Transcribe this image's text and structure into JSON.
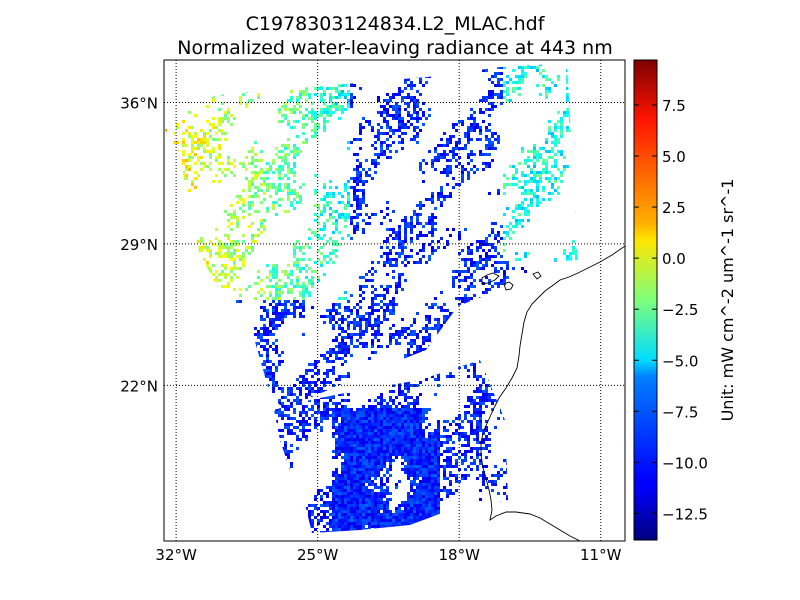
{
  "figure": {
    "title_line1": "C1978303124834.L2_MLAC.hdf",
    "title_line2": "Normalized water-leaving radiance at 443 nm"
  },
  "map": {
    "projection": "plate carree (equirectangular)",
    "gridlines": "dotted",
    "lon_ticks": [
      {
        "value": -32,
        "label": "32°W"
      },
      {
        "value": -25,
        "label": "25°W"
      },
      {
        "value": -18,
        "label": "18°W"
      },
      {
        "value": -11,
        "label": "11°W"
      }
    ],
    "lat_ticks": [
      {
        "value": 36,
        "label": "36°N"
      },
      {
        "value": 29,
        "label": "29°N"
      },
      {
        "value": 22,
        "label": "22°N"
      }
    ],
    "lon_range": [
      -32.6,
      -9.8
    ],
    "lat_range": [
      14.3,
      38.1
    ],
    "coastline": "Northwest Africa, Canary Islands",
    "swath_color_note": "cloud-gapped swath; blue in south, cyan–yellow in north-west"
  },
  "colorbar": {
    "label": "Unit: mW cm^-2 um^-1 sr^-1",
    "colormap": "jet",
    "range": [
      -13.8,
      9.7
    ],
    "ticks": [
      {
        "value": 7.5,
        "label": "7.5"
      },
      {
        "value": 5.0,
        "label": "5.0"
      },
      {
        "value": 2.5,
        "label": "2.5"
      },
      {
        "value": 0.0,
        "label": "0.0"
      },
      {
        "value": -2.5,
        "label": "−2.5"
      },
      {
        "value": -5.0,
        "label": "−5.0"
      },
      {
        "value": -7.5,
        "label": "−7.5"
      },
      {
        "value": -10.0,
        "label": "−10.0"
      },
      {
        "value": -12.5,
        "label": "−12.5"
      }
    ]
  }
}
